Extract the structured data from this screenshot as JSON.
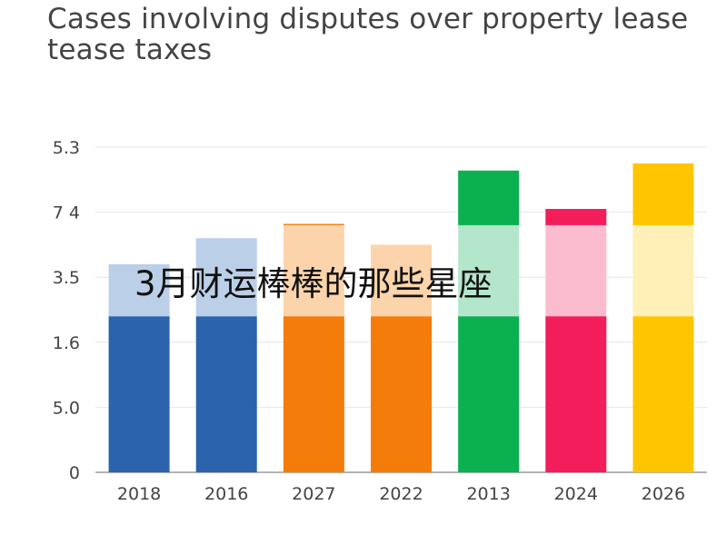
{
  "chart_data": {
    "type": "bar",
    "title": "Cases involving disputes over property lease tease taxes",
    "xlabel": "",
    "ylabel": "",
    "categories": [
      "2018",
      "2016",
      "2027",
      "2022",
      "2013",
      "2024",
      "2026"
    ],
    "ytick_labels": [
      "0",
      "5.0",
      "1.6",
      "3.5",
      "7 4",
      "5.3"
    ],
    "ylim": [
      0,
      5
    ],
    "grid": true,
    "series": [
      {
        "values": [
          2.4,
          2.4,
          2.4,
          2.4,
          2.4,
          2.4,
          2.4
        ]
      },
      {
        "values": [
          0.8,
          1.2,
          1.4,
          1.1,
          1.4,
          1.4,
          1.4
        ]
      },
      {
        "values": [
          0.0,
          0.0,
          0.02,
          0.0,
          0.84,
          0.25,
          0.95
        ]
      }
    ],
    "colors": {
      "bottom": [
        "#2b63ad",
        "#2b63ad",
        "#f47c0a",
        "#f47c0a",
        "#0bb04f",
        "#f21d5a",
        "#ffc600"
      ],
      "middle": [
        "#bccfe8",
        "#bccfe8",
        "#fcd4ab",
        "#fcd4ab",
        "#b4e6cb",
        "#fcbccf",
        "#fff0b8"
      ],
      "top": [
        "#2b63ad",
        "#2b63ad",
        "#f47c0a",
        "#f47c0a",
        "#0bb04f",
        "#f21d5a",
        "#ffc600"
      ]
    }
  },
  "overlay_text": "3月财运棒棒的那些星座"
}
